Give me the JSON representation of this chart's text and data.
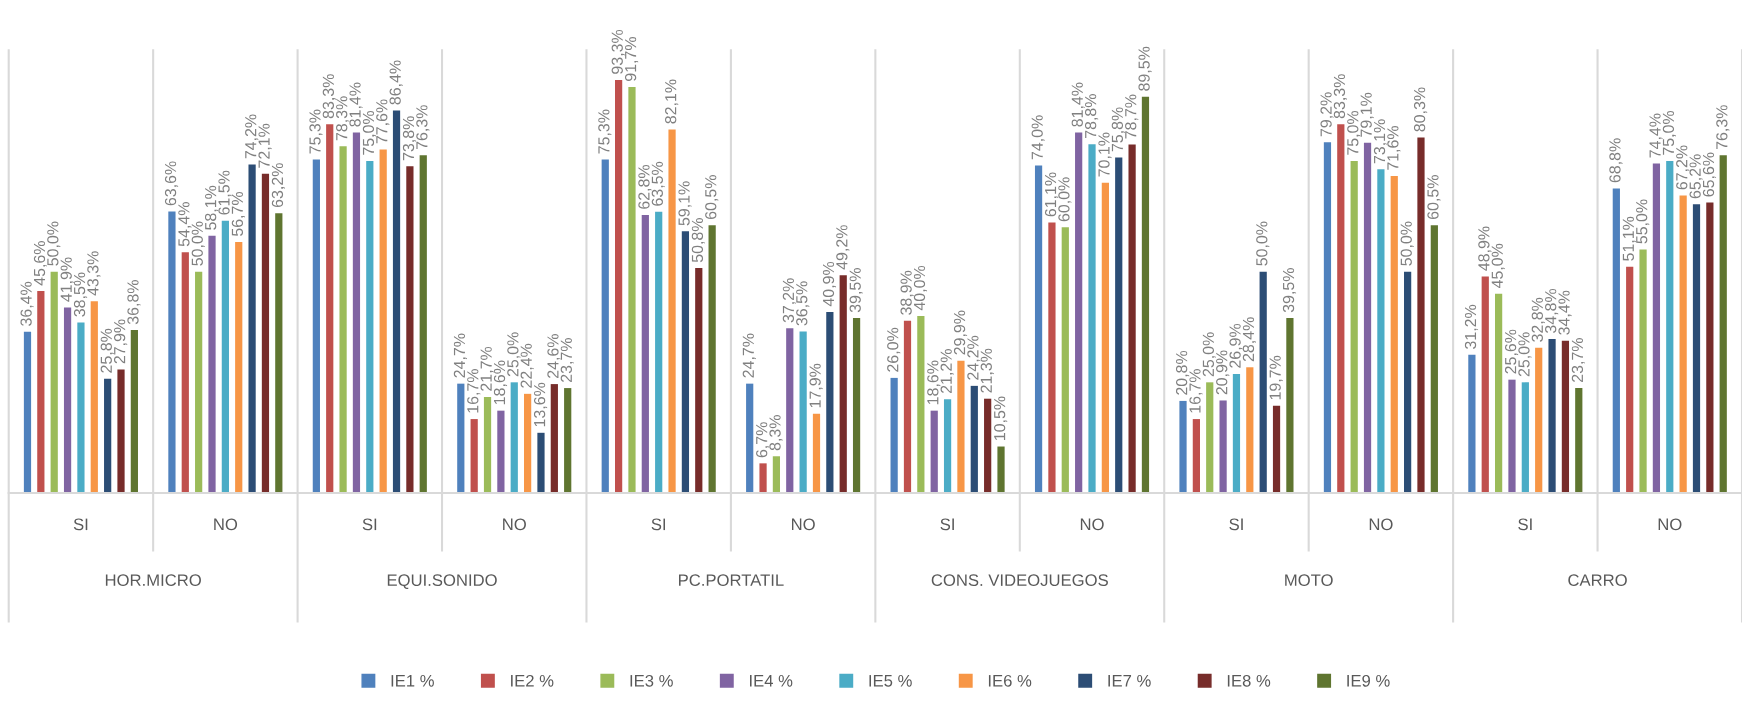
{
  "chart_data": {
    "type": "bar",
    "categories": [
      "SI",
      "NO",
      "SI",
      "NO",
      "SI",
      "NO",
      "SI",
      "NO",
      "SI",
      "NO",
      "SI",
      "NO"
    ],
    "annotations": [
      "HOR.MICRO",
      "EQUI.SONIDO",
      "PC.PORTATIL",
      "CONS. VIDEOJUEGOS",
      "MOTO",
      "CARRO"
    ],
    "ylim": [
      0,
      100
    ],
    "tick_labels": "x",
    "legend": "bottom",
    "series": [
      {
        "name": "IE1 %",
        "color": "#4f81bd",
        "values": [
          36.4,
          63.6,
          75.3,
          24.7,
          75.3,
          24.7,
          26.0,
          74.0,
          20.8,
          79.2,
          31.2,
          68.8
        ],
        "value_labels": [
          "36,4%",
          "63,6%",
          "75,3%",
          "24,7%",
          "75,3%",
          "24,7%",
          "26,0%",
          "74,0%",
          "20,8%",
          "79,2%",
          "31,2%",
          "68,8%"
        ]
      },
      {
        "name": "IE2 %",
        "color": "#c0504d",
        "values": [
          45.6,
          54.4,
          83.3,
          16.7,
          93.3,
          6.7,
          38.9,
          61.1,
          16.7,
          83.3,
          48.9,
          51.1
        ],
        "value_labels": [
          "45,6%",
          "54,4%",
          "83,3%",
          "16,7%",
          "93,3%",
          "6,7%",
          "38,9%",
          "61,1%",
          "16,7%",
          "83,3%",
          "48,9%",
          "51,1%"
        ]
      },
      {
        "name": "IE3 %",
        "color": "#9bbb59",
        "values": [
          50.0,
          50.0,
          78.3,
          21.7,
          91.7,
          8.3,
          40.0,
          60.0,
          25.0,
          75.0,
          45.0,
          55.0
        ],
        "value_labels": [
          "50,0%",
          "50,0%",
          "78,3%",
          "21,7%",
          "91,7%",
          "8,3%",
          "40,0%",
          "60,0%",
          "25,0%",
          "75,0%",
          "45,0%",
          "55,0%"
        ]
      },
      {
        "name": "IE4 %",
        "color": "#8064a2",
        "values": [
          41.9,
          58.1,
          81.4,
          18.6,
          62.8,
          37.2,
          18.6,
          81.4,
          20.9,
          79.1,
          25.6,
          74.4
        ],
        "value_labels": [
          "41,9%",
          "58,1%",
          "81,4%",
          "18,6%",
          "62,8%",
          "37,2%",
          "18,6%",
          "81,4%",
          "20,9%",
          "79,1%",
          "25,6%",
          "74,4%"
        ]
      },
      {
        "name": "IE5 %",
        "color": "#4bacc6",
        "values": [
          38.5,
          61.5,
          75.0,
          25.0,
          63.5,
          36.5,
          21.2,
          78.8,
          26.9,
          73.1,
          25.0,
          75.0
        ],
        "value_labels": [
          "38,5%",
          "61,5%",
          "75,0%",
          "25,0%",
          "63,5%",
          "36,5%",
          "21,2%",
          "78,8%",
          "26,9%",
          "73,1%",
          "25,0%",
          "75,0%"
        ]
      },
      {
        "name": "IE6 %",
        "color": "#f79646",
        "values": [
          43.3,
          56.7,
          77.6,
          22.4,
          82.1,
          17.9,
          29.9,
          70.1,
          28.4,
          71.6,
          32.8,
          67.2
        ],
        "value_labels": [
          "43,3%",
          "56,7%",
          "77,6%",
          "22,4%",
          "82,1%",
          "17,9%",
          "29,9%",
          "70,1%",
          "28,4%",
          "71,6%",
          "32,8%",
          "67,2%"
        ]
      },
      {
        "name": "IE7 %",
        "color": "#2c4d75",
        "values": [
          25.8,
          74.2,
          86.4,
          13.6,
          59.1,
          40.9,
          24.2,
          75.8,
          50.0,
          50.0,
          34.8,
          65.2
        ],
        "value_labels": [
          "25,8%",
          "74,2%",
          "86,4%",
          "13,6%",
          "59,1%",
          "40,9%",
          "24,2%",
          "75,8%",
          "50,0%",
          "50,0%",
          "34,8%",
          "65,2%"
        ]
      },
      {
        "name": "IE8 %",
        "color": "#772c2a",
        "values": [
          27.9,
          72.1,
          73.8,
          24.6,
          50.8,
          49.2,
          21.3,
          78.7,
          19.7,
          80.3,
          34.4,
          65.6
        ],
        "value_labels": [
          "27,9%",
          "72,1%",
          "73,8%",
          "24,6%",
          "50,8%",
          "49,2%",
          "21,3%",
          "78,7%",
          "19,7%",
          "80,3%",
          "34,4%",
          "65,6%"
        ]
      },
      {
        "name": "IE9 %",
        "color": "#5f7530",
        "values": [
          36.8,
          63.2,
          76.3,
          23.7,
          60.5,
          39.5,
          10.5,
          89.5,
          39.5,
          60.5,
          23.7,
          76.3
        ],
        "value_labels": [
          "36,8%",
          "63,2%",
          "76,3%",
          "23,7%",
          "60,5%",
          "39,5%",
          "10,5%",
          "89,5%",
          "39,5%",
          "60,5%",
          "23,7%",
          "76,3%"
        ]
      }
    ]
  }
}
